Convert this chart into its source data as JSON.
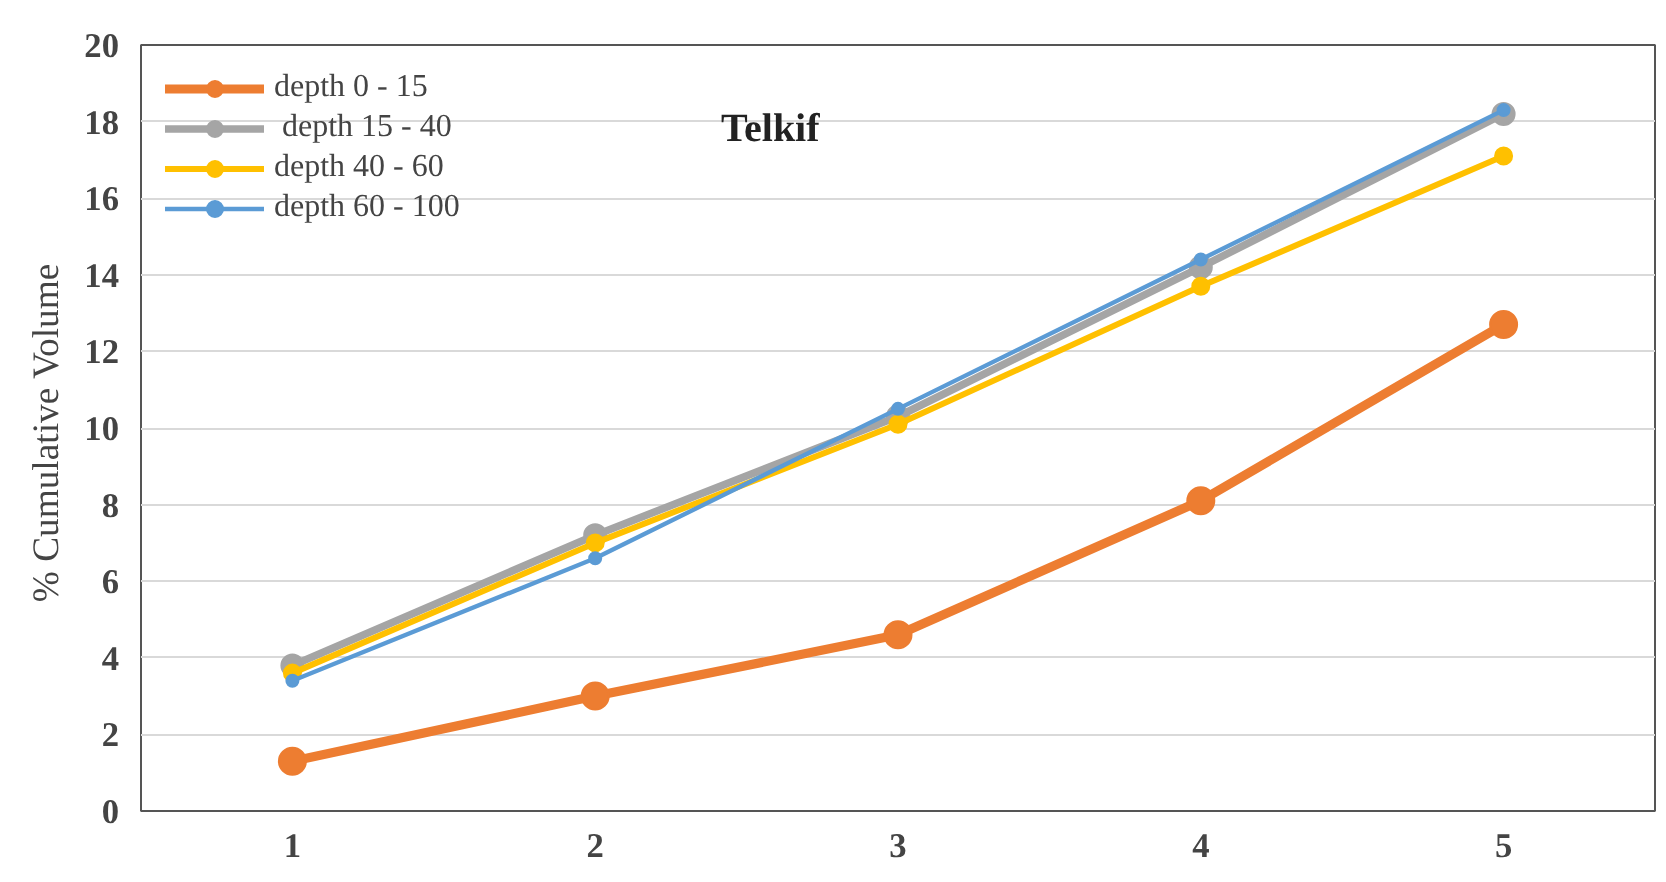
{
  "chart_data": {
    "type": "line",
    "ylabel": "% Cumulative  Volume",
    "annotations": [
      "Telkif"
    ],
    "categories": [
      "1",
      "2",
      "3",
      "4",
      "5"
    ],
    "series": [
      {
        "name": "depth 0 - 15",
        "color": "#ed7d31",
        "values": [
          1.3,
          3.0,
          4.6,
          8.1,
          12.7
        ]
      },
      {
        "name": " depth 15 - 40",
        "color": "#a5a5a5",
        "values": [
          3.8,
          7.2,
          10.3,
          14.2,
          18.2
        ]
      },
      {
        "name": "depth 40 - 60",
        "color": "#ffc000",
        "values": [
          3.6,
          7.0,
          10.1,
          13.7,
          17.1
        ]
      },
      {
        "name": "depth 60 - 100",
        "color": "#5b9bd5",
        "values": [
          3.4,
          6.6,
          10.5,
          14.4,
          18.3
        ]
      }
    ],
    "ylim": [
      0,
      20
    ],
    "yticks": [
      0,
      2,
      4,
      6,
      8,
      10,
      12,
      14,
      16,
      18,
      20
    ],
    "grid": "y",
    "legend": "top left",
    "marker": "circle",
    "line_style": "solid"
  }
}
